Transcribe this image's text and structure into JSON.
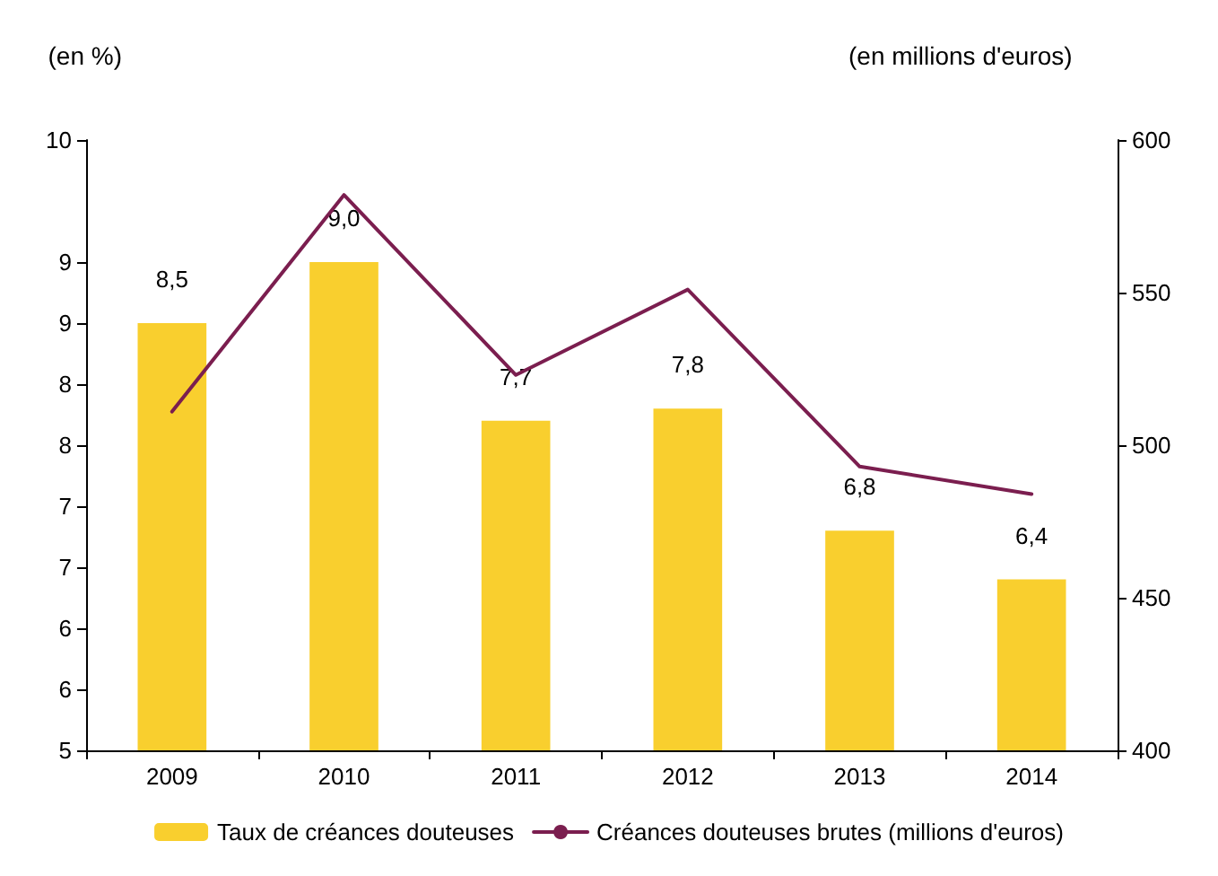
{
  "chart_data": {
    "type": "bar",
    "categories": [
      "2009",
      "2010",
      "2011",
      "2012",
      "2013",
      "2014"
    ],
    "ylabel": "(en %)",
    "y2label": "(en millions d'euros)",
    "ylim": [
      5,
      10
    ],
    "yticks": [
      5,
      {
        "value": 5.5,
        "label": "6"
      },
      6,
      {
        "value": 6.5,
        "label": "7"
      },
      7,
      {
        "value": 7.5,
        "label": "8"
      },
      8,
      {
        "value": 8.5,
        "label": "9"
      },
      9,
      10
    ],
    "y2lim": [
      400,
      600
    ],
    "y2ticks": [
      400,
      450,
      500,
      550,
      600
    ],
    "series": [
      {
        "name": "Taux de créances douteuses",
        "color": "#f9cf2e",
        "values": [
          8.5,
          9.0,
          7.7,
          7.8,
          6.8,
          6.4
        ],
        "value_labels": [
          "8,5",
          "9,0",
          "7,7",
          "7,8",
          "6,8",
          "6,4"
        ]
      },
      {
        "name": "Créances douteuses brutes (millions d'euros)",
        "type": "line",
        "axis": "y2",
        "color": "#7b1e4f",
        "values": [
          511,
          582,
          523,
          551,
          493,
          484
        ]
      }
    ],
    "legend": "bottom",
    "grid": false,
    "marker": "none",
    "line_style": "solid"
  }
}
